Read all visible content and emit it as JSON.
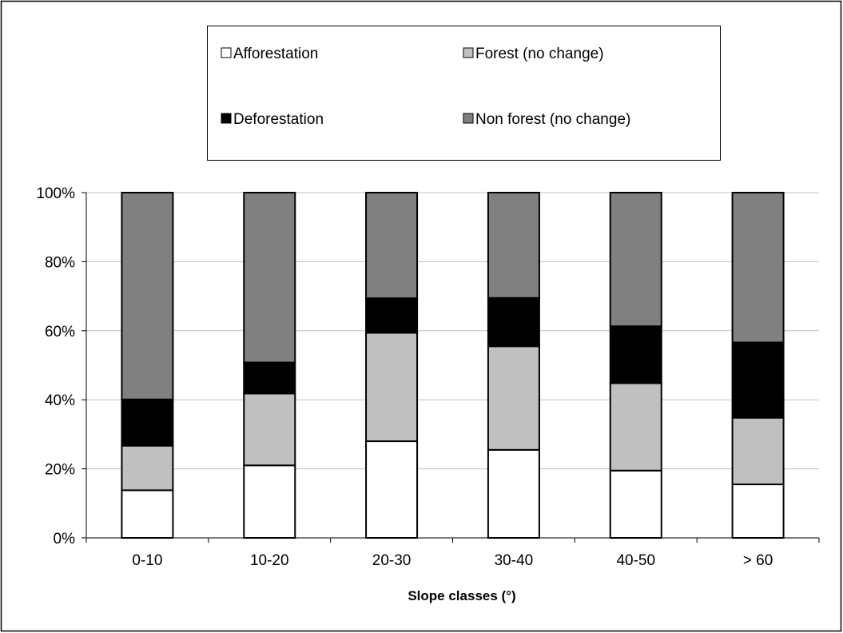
{
  "colors": {
    "Afforestation": "#ffffff",
    "Forest (no change)": "#c0c0c0",
    "Deforestation": "#000000",
    "Non forest (no change)": "#808080",
    "gridline": "#c0c0c0",
    "border": "#000000"
  },
  "chart_data": {
    "type": "bar",
    "stacked": true,
    "percent_axis": true,
    "xlabel": "Slope classes (°)",
    "ylabel": "",
    "ylim": [
      0,
      100
    ],
    "yticks": [
      "0%",
      "20%",
      "40%",
      "60%",
      "80%",
      "100%"
    ],
    "grid": true,
    "legend_position": "top",
    "categories": [
      "0-10",
      "10-20",
      "20-30",
      "30-40",
      "40-50",
      "> 60"
    ],
    "series": [
      {
        "name": "Afforestation",
        "values": [
          13.8,
          21.0,
          28.0,
          25.5,
          19.5,
          15.5
        ]
      },
      {
        "name": "Forest (no change)",
        "values": [
          12.9,
          20.8,
          31.4,
          30.0,
          25.3,
          19.3
        ]
      },
      {
        "name": "Deforestation",
        "values": [
          13.4,
          9.0,
          10.0,
          14.0,
          16.5,
          21.8
        ]
      },
      {
        "name": "Non forest (no change)",
        "values": [
          59.9,
          49.2,
          30.6,
          30.5,
          38.7,
          43.4
        ]
      }
    ],
    "legend": {
      "rows": [
        [
          "Afforestation",
          "Forest (no change)"
        ],
        [
          "Deforestation",
          "Non forest (no change)"
        ]
      ]
    }
  }
}
